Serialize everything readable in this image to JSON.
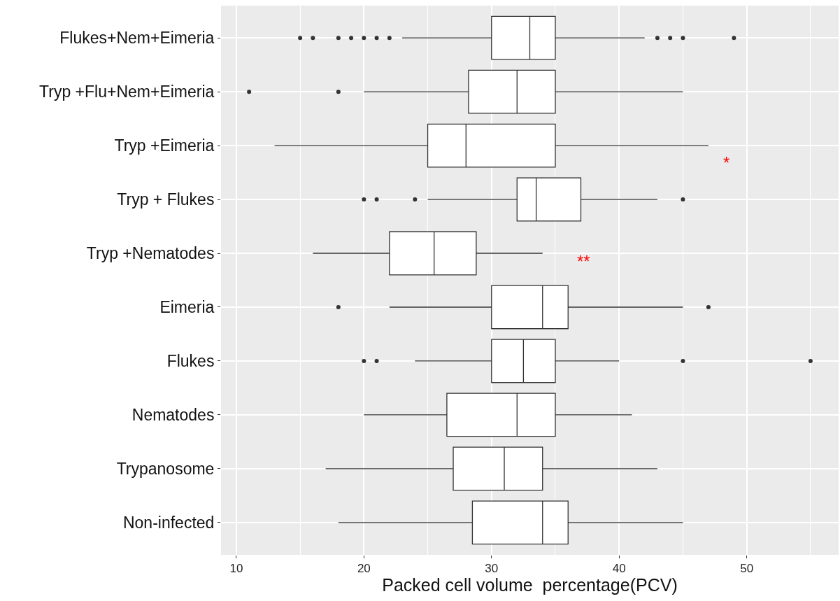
{
  "chart_data": {
    "type": "box",
    "orientation": "horizontal",
    "xlabel": "Packed cell volume  percentage(PCV)",
    "categories": [
      "Flukes+Nem+Eimeria",
      "Tryp +Flu+Nem+Eimeria",
      "Tryp +Eimeria",
      "Tryp + Flukes",
      "Tryp +Nematodes",
      "Eimeria",
      "Flukes",
      "Nematodes",
      "Trypanosome",
      "Non-infected"
    ],
    "boxes": [
      {
        "low": 23,
        "q1": 30,
        "median": 33,
        "q3": 35,
        "high": 42,
        "outliers": [
          15,
          16,
          18,
          19,
          20,
          21,
          22,
          43,
          44,
          45,
          49
        ]
      },
      {
        "low": 20,
        "q1": 28.2,
        "median": 32,
        "q3": 35,
        "high": 45,
        "outliers": [
          11,
          18
        ]
      },
      {
        "low": 13,
        "q1": 25,
        "median": 28,
        "q3": 35,
        "high": 47
      },
      {
        "low": 25,
        "q1": 32,
        "median": 33.5,
        "q3": 37,
        "high": 43,
        "outliers": [
          20,
          21,
          24,
          45
        ]
      },
      {
        "low": 16,
        "q1": 22,
        "median": 25.5,
        "q3": 28.8,
        "high": 34
      },
      {
        "low": 22,
        "q1": 30,
        "median": 34,
        "q3": 36,
        "high": 45,
        "outliers": [
          18,
          47
        ]
      },
      {
        "low": 24,
        "q1": 30,
        "median": 32.5,
        "q3": 35,
        "high": 40,
        "outliers": [
          20,
          21,
          45,
          55
        ]
      },
      {
        "low": 20,
        "q1": 26.5,
        "median": 32,
        "q3": 35,
        "high": 41
      },
      {
        "low": 17,
        "q1": 27,
        "median": 31,
        "q3": 34,
        "high": 43
      },
      {
        "low": 18,
        "q1": 28.5,
        "median": 34,
        "q3": 36,
        "high": 45
      }
    ],
    "xlim": [
      8.8,
      57.2
    ],
    "xticks": [
      10,
      20,
      30,
      40,
      50
    ],
    "grid": true,
    "annotations": [
      "*",
      "**"
    ]
  }
}
